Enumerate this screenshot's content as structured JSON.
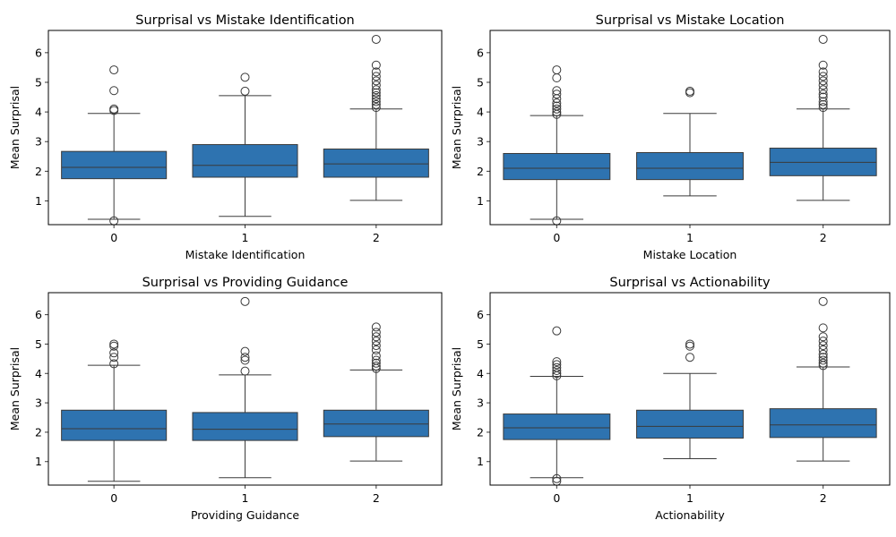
{
  "chart_data": [
    {
      "type": "box",
      "title": "Surprisal vs Mistake Identification",
      "xlabel": "Mistake Identification",
      "ylabel": "Mean Surprisal",
      "categories": [
        "0",
        "1",
        "2"
      ],
      "yticks": [
        "1",
        "2",
        "3",
        "4",
        "5",
        "6"
      ],
      "ylim": [
        0.2,
        6.75
      ],
      "box_color": "#2e73b0",
      "boxes": [
        {
          "q1": 1.75,
          "median": 2.13,
          "q3": 2.67,
          "whisker_low": 0.38,
          "whisker_high": 3.95,
          "outliers": [
            0.33,
            4.05,
            4.1,
            4.72,
            5.42
          ]
        },
        {
          "q1": 1.8,
          "median": 2.2,
          "q3": 2.9,
          "whisker_low": 0.48,
          "whisker_high": 4.55,
          "outliers": [
            4.7,
            5.17
          ]
        },
        {
          "q1": 1.8,
          "median": 2.25,
          "q3": 2.75,
          "whisker_low": 1.02,
          "whisker_high": 4.1,
          "outliers": [
            4.15,
            4.25,
            4.35,
            4.45,
            4.55,
            4.65,
            4.75,
            4.9,
            5.05,
            5.2,
            5.35,
            5.58,
            6.45
          ]
        }
      ]
    },
    {
      "type": "box",
      "title": "Surprisal vs Mistake Location",
      "xlabel": "Mistake Location",
      "ylabel": "Mean Surprisal",
      "categories": [
        "0",
        "1",
        "2"
      ],
      "yticks": [
        "1",
        "2",
        "3",
        "4",
        "5",
        "6"
      ],
      "ylim": [
        0.2,
        6.75
      ],
      "box_color": "#2e73b0",
      "boxes": [
        {
          "q1": 1.72,
          "median": 2.1,
          "q3": 2.6,
          "whisker_low": 0.38,
          "whisker_high": 3.88,
          "outliers": [
            0.33,
            3.92,
            4.0,
            4.1,
            4.2,
            4.3,
            4.45,
            4.6,
            4.72,
            5.15,
            5.42
          ]
        },
        {
          "q1": 1.72,
          "median": 2.1,
          "q3": 2.63,
          "whisker_low": 1.17,
          "whisker_high": 3.95,
          "outliers": [
            4.65,
            4.7
          ]
        },
        {
          "q1": 1.85,
          "median": 2.3,
          "q3": 2.78,
          "whisker_low": 1.02,
          "whisker_high": 4.1,
          "outliers": [
            4.15,
            4.25,
            4.35,
            4.5,
            4.6,
            4.75,
            4.9,
            5.05,
            5.2,
            5.35,
            5.58,
            6.45
          ]
        }
      ]
    },
    {
      "type": "box",
      "title": "Surprisal vs Providing Guidance",
      "xlabel": "Providing Guidance",
      "ylabel": "Mean Surprisal",
      "categories": [
        "0",
        "1",
        "2"
      ],
      "yticks": [
        "1",
        "2",
        "3",
        "4",
        "5",
        "6"
      ],
      "ylim": [
        0.2,
        6.75
      ],
      "box_color": "#2e73b0",
      "boxes": [
        {
          "q1": 1.72,
          "median": 2.12,
          "q3": 2.75,
          "whisker_low": 0.33,
          "whisker_high": 4.28,
          "outliers": [
            4.33,
            4.55,
            4.7,
            4.93,
            5.0
          ]
        },
        {
          "q1": 1.72,
          "median": 2.1,
          "q3": 2.67,
          "whisker_low": 0.45,
          "whisker_high": 3.95,
          "outliers": [
            4.08,
            4.45,
            4.55,
            4.75,
            6.45
          ]
        },
        {
          "q1": 1.85,
          "median": 2.28,
          "q3": 2.75,
          "whisker_low": 1.02,
          "whisker_high": 4.12,
          "outliers": [
            4.17,
            4.25,
            4.35,
            4.45,
            4.6,
            4.8,
            4.95,
            5.1,
            5.25,
            5.4,
            5.58
          ]
        }
      ]
    },
    {
      "type": "box",
      "title": "Surprisal vs Actionability",
      "xlabel": "Actionability",
      "ylabel": "Mean Surprisal",
      "categories": [
        "0",
        "1",
        "2"
      ],
      "yticks": [
        "1",
        "2",
        "3",
        "4",
        "5",
        "6"
      ],
      "ylim": [
        0.2,
        6.75
      ],
      "box_color": "#2e73b0",
      "boxes": [
        {
          "q1": 1.75,
          "median": 2.15,
          "q3": 2.62,
          "whisker_low": 0.45,
          "whisker_high": 3.9,
          "outliers": [
            0.33,
            0.42,
            3.92,
            4.0,
            4.1,
            4.2,
            4.3,
            4.4,
            5.45
          ]
        },
        {
          "q1": 1.8,
          "median": 2.2,
          "q3": 2.75,
          "whisker_low": 1.1,
          "whisker_high": 4.0,
          "outliers": [
            4.55,
            4.93,
            5.0
          ]
        },
        {
          "q1": 1.82,
          "median": 2.25,
          "q3": 2.8,
          "whisker_low": 1.02,
          "whisker_high": 4.22,
          "outliers": [
            4.27,
            4.35,
            4.45,
            4.55,
            4.65,
            4.8,
            4.95,
            5.1,
            5.25,
            5.55,
            6.45
          ]
        }
      ]
    }
  ]
}
